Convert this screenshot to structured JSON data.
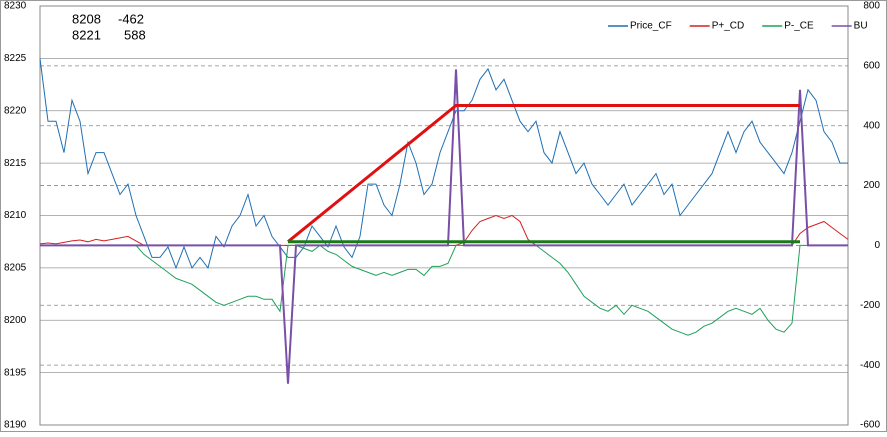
{
  "chart_data": {
    "type": "line",
    "info": [
      [
        "8208",
        "-462"
      ],
      [
        "8221",
        "588"
      ]
    ],
    "xlim": [
      0,
      101
    ],
    "ylim": [
      8190,
      8230
    ],
    "yticks": [
      8190,
      8195,
      8200,
      8205,
      8210,
      8215,
      8220,
      8225,
      8230
    ],
    "y2lim": [
      -600,
      800
    ],
    "y2ticks": [
      -600,
      -400,
      -200,
      0,
      200,
      400,
      600,
      800
    ],
    "grid": true,
    "legend": "top-right",
    "series": [
      {
        "name": "Price_CF",
        "color": "#1f6fb4",
        "axis": "y",
        "width": 1,
        "values": [
          8225,
          8219,
          8219,
          8216,
          8221,
          8219,
          8214,
          8216,
          8216,
          8214,
          8212,
          8213,
          8210,
          8208,
          8206,
          8206,
          8207,
          8205,
          8207,
          8205,
          8206,
          8205,
          8208,
          8207,
          8209,
          8210,
          8212,
          8209,
          8210,
          8208,
          8207,
          8206,
          8206,
          8207,
          8209,
          8208,
          8207,
          8209,
          8207,
          8206,
          8208,
          8213,
          8213,
          8211,
          8210,
          8213,
          8217,
          8215,
          8212,
          8213,
          8216,
          8218,
          8220,
          8220,
          8221,
          8223,
          8224,
          8222,
          8223,
          8221,
          8219,
          8218,
          8219,
          8216,
          8215,
          8218,
          8216,
          8214,
          8215,
          8213,
          8212,
          8211,
          8212,
          8213,
          8211,
          8212,
          8213,
          8214,
          8212,
          8213,
          8210,
          8211,
          8212,
          8213,
          8214,
          8216,
          8218,
          8216,
          8218,
          8219,
          8217,
          8216,
          8215,
          8214,
          8216,
          8219,
          8222,
          8221,
          8218,
          8217,
          8215,
          8215
        ]
      },
      {
        "name": "P+_CD",
        "color": "#d42020",
        "axis": "y2",
        "width": 1,
        "values": [
          5,
          8,
          5,
          10,
          15,
          18,
          12,
          20,
          15,
          20,
          25,
          30,
          15,
          0,
          0,
          0,
          0,
          0,
          0,
          0,
          0,
          0,
          0,
          0,
          0,
          0,
          0,
          0,
          0,
          0,
          0,
          0,
          0,
          0,
          0,
          0,
          0,
          0,
          0,
          0,
          0,
          0,
          0,
          0,
          0,
          0,
          0,
          0,
          0,
          0,
          0,
          0,
          0,
          10,
          50,
          80,
          90,
          100,
          90,
          100,
          80,
          20,
          0,
          0,
          0,
          0,
          0,
          0,
          0,
          0,
          0,
          0,
          0,
          0,
          0,
          0,
          0,
          0,
          0,
          0,
          0,
          0,
          0,
          0,
          0,
          0,
          0,
          0,
          0,
          0,
          0,
          0,
          0,
          0,
          0,
          40,
          60,
          70,
          80,
          60,
          40,
          20
        ]
      },
      {
        "name": "P-_CE",
        "color": "#1fa05a",
        "axis": "y2",
        "width": 1,
        "values": [
          0,
          0,
          0,
          0,
          0,
          0,
          0,
          0,
          0,
          0,
          0,
          0,
          0,
          -30,
          -50,
          -70,
          -90,
          -110,
          -120,
          -130,
          -150,
          -170,
          -190,
          -200,
          -190,
          -180,
          -170,
          -170,
          -180,
          -180,
          -220,
          0,
          0,
          -10,
          -20,
          0,
          -20,
          -30,
          -50,
          -70,
          -80,
          -90,
          -100,
          -90,
          -100,
          -90,
          -80,
          -80,
          -100,
          -70,
          -70,
          -60,
          0,
          0,
          0,
          0,
          0,
          0,
          0,
          0,
          0,
          0,
          0,
          -20,
          -40,
          -60,
          -90,
          -130,
          -170,
          -190,
          -210,
          -220,
          -200,
          -230,
          -200,
          -210,
          -220,
          -240,
          -260,
          -280,
          -290,
          -300,
          -290,
          -270,
          -260,
          -240,
          -220,
          -210,
          -220,
          -230,
          -210,
          -250,
          -280,
          -290,
          -260,
          0,
          0,
          0,
          0,
          0,
          0,
          0
        ]
      },
      {
        "name": "BU",
        "color": "#7a4fa8",
        "axis": "y2",
        "width": 2,
        "values": [
          0,
          0,
          0,
          0,
          0,
          0,
          0,
          0,
          0,
          0,
          0,
          0,
          0,
          0,
          0,
          0,
          0,
          0,
          0,
          0,
          0,
          0,
          0,
          0,
          0,
          0,
          0,
          0,
          0,
          0,
          0,
          -462,
          0,
          0,
          0,
          0,
          0,
          0,
          0,
          0,
          0,
          0,
          0,
          0,
          0,
          0,
          0,
          0,
          0,
          0,
          0,
          0,
          588,
          0,
          0,
          0,
          0,
          0,
          0,
          0,
          0,
          0,
          0,
          0,
          0,
          0,
          0,
          0,
          0,
          0,
          0,
          0,
          0,
          0,
          0,
          0,
          0,
          0,
          0,
          0,
          0,
          0,
          0,
          0,
          0,
          0,
          0,
          0,
          0,
          0,
          0,
          0,
          0,
          0,
          0,
          520,
          0,
          0,
          0,
          0,
          0,
          0
        ]
      }
    ],
    "trend_lines": [
      {
        "color": "#e01010",
        "x": [
          31,
          52,
          95
        ],
        "y": [
          8207.5,
          8220.5,
          8220.5
        ]
      },
      {
        "color": "#1a7a1a",
        "x": [
          31,
          95
        ],
        "y": [
          8207.5,
          8207.5
        ]
      }
    ]
  }
}
